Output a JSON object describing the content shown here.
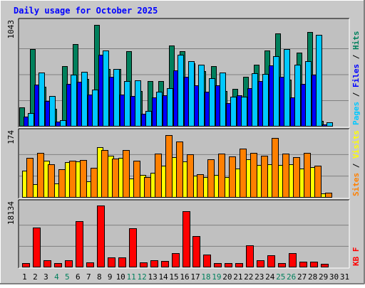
{
  "chart_data": {
    "type": "bar",
    "title": "Daily usage for October 2025",
    "categories": [
      "1",
      "2",
      "3",
      "4",
      "5",
      "6",
      "7",
      "8",
      "9",
      "10",
      "11",
      "12",
      "13",
      "14",
      "15",
      "16",
      "17",
      "18",
      "19",
      "20",
      "21",
      "22",
      "23",
      "24",
      "25",
      "26",
      "27",
      "28",
      "29",
      "30",
      "31"
    ],
    "weekend_days": [
      "4",
      "5",
      "11",
      "12",
      "18",
      "19",
      "25",
      "26"
    ],
    "colors": {
      "title": "#0000ff",
      "hits": "#00805c",
      "files": "#0000ff",
      "pages": "#00c8ff",
      "visits": "#ffff00",
      "sites": "#ff8000",
      "kbytes": "#ff0000",
      "weekend_label": "#00805c",
      "weekday_label": "#000000",
      "plot_bg": "#c0c0c0",
      "frame_bg": "#c8c8c8",
      "gridline": "#808080"
    },
    "panels": [
      {
        "id": "hits-files-pages",
        "ymax_label": "1043",
        "ylim": [
          0,
          1043
        ],
        "legend": [
          {
            "text": "Pages",
            "color": "#00c8ff"
          },
          {
            "text": " / ",
            "color": "#000000"
          },
          {
            "text": "Files",
            "color": "#0000ff"
          },
          {
            "text": " / ",
            "color": "#000000"
          },
          {
            "text": "Hits",
            "color": "#00805c"
          }
        ],
        "series": [
          {
            "name": "Hits",
            "color": "#00805c",
            "values": [
              195,
              781,
              403,
              176,
              608,
              826,
              480,
              1023,
              580,
              576,
              755,
              355,
              455,
              460,
              816,
              756,
              634,
              559,
              608,
              356,
              377,
              503,
              618,
              762,
              936,
              472,
              745,
              952,
              60,
              0,
              0
            ]
          },
          {
            "name": "Files",
            "color": "#0000ff",
            "values": [
              98,
              421,
              259,
              53,
              430,
              447,
              318,
              719,
              501,
              322,
              304,
              130,
              295,
              317,
              567,
              498,
              411,
              351,
              412,
              234,
              313,
              389,
              457,
              616,
              500,
              296,
              432,
              519,
              25,
              0,
              0
            ]
          },
          {
            "name": "Pages",
            "color": "#00c8ff",
            "values": [
              134,
              545,
              310,
              64,
              520,
              553,
              371,
              767,
              576,
              454,
              462,
              158,
              353,
              384,
              718,
              656,
              623,
              484,
              543,
              298,
              298,
              533,
              526,
              706,
              776,
              620,
              658,
              920,
              46,
              0,
              0
            ]
          }
        ]
      },
      {
        "id": "visits-sites",
        "ymax_label": "174",
        "ylim": [
          0,
          174
        ],
        "legend": [
          {
            "text": "Sites",
            "color": "#ff8000"
          },
          {
            "text": " / ",
            "color": "#000000"
          },
          {
            "text": "Visits",
            "color": "#ffff00"
          }
        ],
        "series": [
          {
            "name": "Visits",
            "color": "#ffff00",
            "values": [
              73,
              37,
              100,
              38,
              95,
              97,
              44,
              136,
              112,
              107,
              51,
              61,
              67,
              86,
              109,
              98,
              59,
              55,
              62,
              55,
              79,
              103,
              88,
              89,
              88,
              90,
              78,
              83,
              11,
              0,
              0
            ]
          },
          {
            "name": "Sites",
            "color": "#ff8000",
            "values": [
              108,
              120,
              90,
              76,
              100,
              102,
              80,
              128,
              106,
              128,
              100,
              56,
              119,
              168,
              151,
              116,
              64,
              104,
              118,
              111,
              132,
              121,
              113,
              160,
              119,
              109,
              121,
              86,
              13,
              0,
              0
            ]
          }
        ]
      },
      {
        "id": "kbytes",
        "ymax_label": "18134",
        "ylim": [
          0,
          18134
        ],
        "legend": [
          {
            "text": "KB F",
            "color": "#ff0000"
          }
        ],
        "series": [
          {
            "name": "KB F",
            "color": "#ff0000",
            "values": [
              1127,
              11429,
              2066,
              1127,
              2066,
              13309,
              1503,
              17722,
              2818,
              2818,
              11241,
              1503,
              2066,
              1878,
              4133,
              16159,
              9018,
              3570,
              1127,
              1127,
              1127,
              6387,
              2066,
              3382,
              1127,
              4133,
              1691,
              1691,
              939,
              0,
              0
            ]
          }
        ]
      }
    ]
  }
}
